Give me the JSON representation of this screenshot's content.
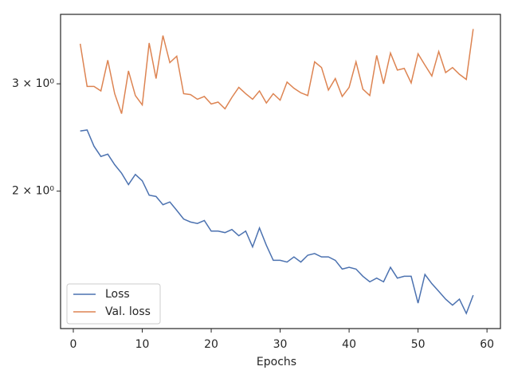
{
  "chart_data": {
    "type": "line",
    "xlabel": "Epochs",
    "x": [
      1,
      2,
      3,
      4,
      5,
      6,
      7,
      8,
      9,
      10,
      11,
      12,
      13,
      14,
      15,
      16,
      17,
      18,
      19,
      20,
      21,
      22,
      23,
      24,
      25,
      26,
      27,
      28,
      29,
      30,
      31,
      32,
      33,
      34,
      35,
      36,
      37,
      38,
      39,
      40,
      41,
      42,
      43,
      44,
      45,
      46,
      47,
      48,
      49,
      50,
      51,
      52,
      53,
      54,
      55,
      56,
      57,
      58
    ],
    "series": [
      {
        "name": "Loss",
        "color": "#4c72b0",
        "values": [
          2.51,
          2.52,
          2.37,
          2.28,
          2.3,
          2.21,
          2.14,
          2.05,
          2.13,
          2.08,
          1.97,
          1.96,
          1.9,
          1.92,
          1.86,
          1.8,
          1.78,
          1.77,
          1.79,
          1.72,
          1.72,
          1.71,
          1.73,
          1.69,
          1.72,
          1.62,
          1.74,
          1.63,
          1.54,
          1.54,
          1.53,
          1.56,
          1.53,
          1.57,
          1.58,
          1.56,
          1.56,
          1.54,
          1.49,
          1.5,
          1.49,
          1.45,
          1.42,
          1.44,
          1.42,
          1.5,
          1.44,
          1.45,
          1.45,
          1.31,
          1.46,
          1.41,
          1.37,
          1.33,
          1.3,
          1.33,
          1.26,
          1.35
        ]
      },
      {
        "name": "Val. loss",
        "color": "#dd8452",
        "values": [
          3.49,
          2.97,
          2.97,
          2.92,
          3.28,
          2.89,
          2.68,
          3.15,
          2.87,
          2.77,
          3.5,
          3.06,
          3.6,
          3.25,
          3.33,
          2.89,
          2.88,
          2.83,
          2.86,
          2.78,
          2.8,
          2.73,
          2.85,
          2.96,
          2.89,
          2.83,
          2.92,
          2.79,
          2.89,
          2.82,
          3.02,
          2.95,
          2.9,
          2.87,
          3.26,
          3.19,
          2.93,
          3.06,
          2.86,
          2.96,
          3.26,
          2.94,
          2.87,
          3.34,
          3.0,
          3.37,
          3.16,
          3.18,
          3.01,
          3.36,
          3.22,
          3.09,
          3.39,
          3.13,
          3.19,
          3.11,
          3.05,
          3.69
        ]
      }
    ],
    "xlim": [
      -1.85,
      61.95
    ],
    "xticks": [
      0,
      10,
      20,
      30,
      40,
      50,
      60
    ],
    "ylim": [
      1.19,
      3.9
    ],
    "log_y": true,
    "yticks": [
      {
        "value": 2,
        "label": "2 × 10⁰"
      },
      {
        "value": 3,
        "label": "3 × 10⁰"
      }
    ],
    "legend": "lower left",
    "grid": false
  }
}
